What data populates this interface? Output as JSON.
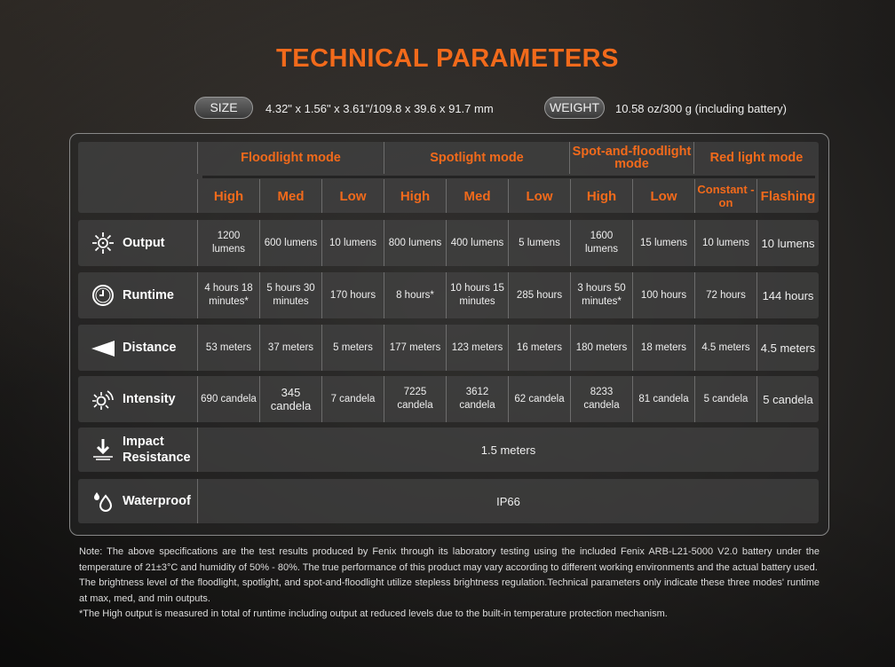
{
  "title": "TECHNICAL PARAMETERS",
  "size": {
    "label": "SIZE",
    "value": "4.32\" x 1.56\" x 3.61\"/109.8 x 39.6 x 91.7 mm"
  },
  "weight": {
    "label": "WEIGHT",
    "value": "10.58 oz/300 g (including battery)"
  },
  "groups": [
    "Floodlight mode",
    "Spotlight mode",
    "Spot-and-floodlight mode",
    "Red light mode"
  ],
  "levels": [
    "High",
    "Med",
    "Low",
    "High",
    "Med",
    "Low",
    "High",
    "Low",
    "Constant -on",
    "Flashing"
  ],
  "rows": [
    {
      "label": "Output",
      "icon": "sun-icon",
      "values": [
        "1200 lumens",
        "600 lumens",
        "10 lumens",
        "800 lumens",
        "400 lumens",
        "5 lumens",
        "1600 lumens",
        "15 lumens",
        "10 lumens",
        "10 lumens"
      ]
    },
    {
      "label": "Runtime",
      "icon": "clock-icon",
      "values": [
        "4 hours 18 minutes*",
        "5 hours 30 minutes",
        "170 hours",
        "8 hours*",
        "10 hours 15 minutes",
        "285 hours",
        "3 hours 50 minutes*",
        "100 hours",
        "72 hours",
        "144 hours"
      ]
    },
    {
      "label": "Distance",
      "icon": "beam-icon",
      "values": [
        "53 meters",
        "37 meters",
        "5 meters",
        "177 meters",
        "123 meters",
        "16 meters",
        "180 meters",
        "18 meters",
        "4.5 meters",
        "4.5 meters"
      ]
    },
    {
      "label": "Intensity",
      "icon": "intensity-icon",
      "values": [
        "690 candela",
        "345 candela",
        "7 candela",
        "7225 candela",
        "3612 candela",
        "62 candela",
        "8233 candela",
        "81 candela",
        "5 candela",
        "5 candela"
      ]
    }
  ],
  "impact": {
    "label": "Impact Resistance",
    "value": "1.5 meters"
  },
  "waterproof": {
    "label": "Waterproof",
    "value": "IP66"
  },
  "notes": [
    "Note: The above specifications are the test results produced by Fenix through its laboratory testing using the included Fenix ARB-L21-5000 V2.0 battery under the temperature of 21±3°C and humidity of 50% - 80%.  The true performance of this product may vary according to different working environments and the actual battery used.",
    "The brightness level of the floodlight, spotlight, and spot-and-floodlight utilize stepless brightness regulation.Technical parameters only indicate these three modes' runtime at max, med, and min outputs.",
    "*The High output is measured in total of runtime including output at reduced levels due to the built-in temperature protection mechanism."
  ]
}
